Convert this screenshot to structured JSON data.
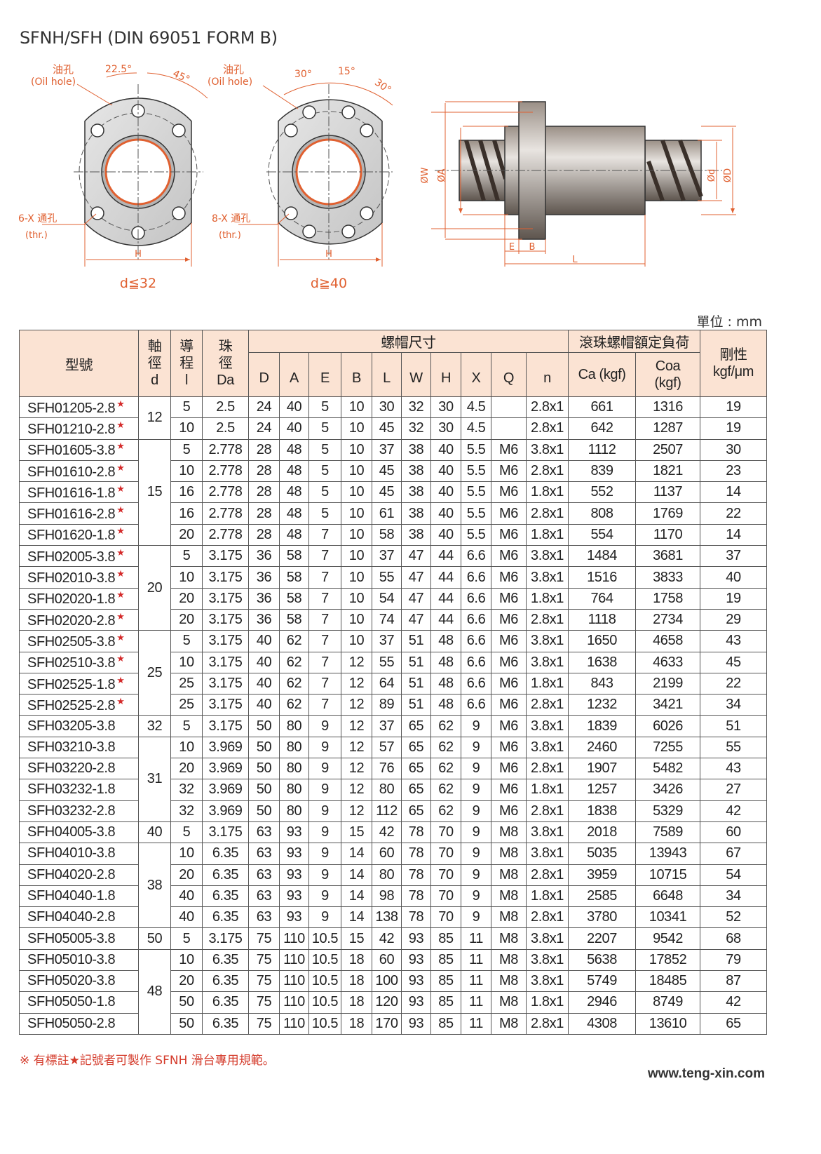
{
  "title": "SFNH/SFH (DIN 69051 FORM B)",
  "diagrams": [
    {
      "oil_hole": "油孔",
      "oil_hole_en": "(Oil hole)",
      "angles": [
        "22.5°",
        "45°"
      ],
      "holes": "6-X 通孔",
      "holes_en": "(thr.)",
      "width": "H",
      "caption": "d≦32"
    },
    {
      "oil_hole": "油孔",
      "oil_hole_en": "(Oil hole)",
      "angles": [
        "30°",
        "15°",
        "30°"
      ],
      "holes": "8-X 通孔",
      "holes_en": "(thr.)",
      "width": "H",
      "caption": "d≧40"
    },
    {
      "labels": [
        "ØW",
        "ØA",
        "E",
        "B",
        "L",
        "Ød",
        "ØD"
      ]
    }
  ],
  "unit": "單位 : mm",
  "table": {
    "headers": {
      "model": "型號",
      "shaft": [
        "軸",
        "徑",
        "d"
      ],
      "lead": [
        "導",
        "程",
        "l"
      ],
      "ball": [
        "珠",
        "徑",
        "Da"
      ],
      "nut": "螺帽尺寸",
      "nut_cols": [
        "D",
        "A",
        "E",
        "B",
        "L",
        "W",
        "H",
        "X",
        "Q",
        "n"
      ],
      "load": "滾珠螺帽額定負荷",
      "load_cols": [
        [
          "Ca (kgf)"
        ],
        [
          "Coa",
          "(kgf)"
        ]
      ],
      "stiffness": [
        "剛性",
        "kgf/μm"
      ]
    },
    "groups": [
      {
        "d": 12,
        "rows": [
          {
            "model": "SFH01205-2.8",
            "mark": "★",
            "cells": [
              5,
              2.5,
              24,
              40,
              5,
              10,
              30,
              32,
              30,
              4.5,
              null,
              "2.8x1",
              661,
              1316,
              19
            ]
          },
          {
            "model": "SFH01210-2.8",
            "mark": "★",
            "cells": [
              10,
              2.5,
              24,
              40,
              5,
              10,
              45,
              32,
              30,
              4.5,
              null,
              "2.8x1",
              642,
              1287,
              19
            ]
          }
        ]
      },
      {
        "d": 15,
        "rows": [
          {
            "model": "SFH01605-3.8",
            "mark": "★",
            "cells": [
              5,
              2.778,
              28,
              48,
              5,
              10,
              37,
              38,
              40,
              5.5,
              "M6",
              "3.8x1",
              1112,
              2507,
              30
            ]
          },
          {
            "model": "SFH01610-2.8",
            "mark": "★",
            "cells": [
              10,
              2.778,
              28,
              48,
              5,
              10,
              45,
              38,
              40,
              5.5,
              "M6",
              "2.8x1",
              839,
              1821,
              23
            ]
          },
          {
            "model": "SFH01616-1.8",
            "mark": "★",
            "cells": [
              16,
              2.778,
              28,
              48,
              5,
              10,
              45,
              38,
              40,
              5.5,
              "M6",
              "1.8x1",
              552,
              1137,
              14
            ]
          },
          {
            "model": "SFH01616-2.8",
            "mark": "★",
            "cells": [
              16,
              2.778,
              28,
              48,
              5,
              10,
              61,
              38,
              40,
              5.5,
              "M6",
              "2.8x1",
              808,
              1769,
              22
            ]
          },
          {
            "model": "SFH01620-1.8",
            "mark": "★",
            "cells": [
              20,
              2.778,
              28,
              48,
              7,
              10,
              58,
              38,
              40,
              5.5,
              "M6",
              "1.8x1",
              554,
              1170,
              14
            ]
          }
        ]
      },
      {
        "d": 20,
        "rows": [
          {
            "model": "SFH02005-3.8",
            "mark": "★",
            "cells": [
              5,
              3.175,
              36,
              58,
              7,
              10,
              37,
              47,
              44,
              6.6,
              "M6",
              "3.8x1",
              1484,
              3681,
              37
            ]
          },
          {
            "model": "SFH02010-3.8",
            "mark": "★",
            "cells": [
              10,
              3.175,
              36,
              58,
              7,
              10,
              55,
              47,
              44,
              6.6,
              "M6",
              "3.8x1",
              1516,
              3833,
              40
            ]
          },
          {
            "model": "SFH02020-1.8",
            "mark": "★",
            "cells": [
              20,
              3.175,
              36,
              58,
              7,
              10,
              54,
              47,
              44,
              6.6,
              "M6",
              "1.8x1",
              764,
              1758,
              19
            ]
          },
          {
            "model": "SFH02020-2.8",
            "mark": "★",
            "cells": [
              20,
              3.175,
              36,
              58,
              7,
              10,
              74,
              47,
              44,
              6.6,
              "M6",
              "2.8x1",
              1118,
              2734,
              29
            ]
          }
        ]
      },
      {
        "d": 25,
        "rows": [
          {
            "model": "SFH02505-3.8",
            "mark": "★",
            "cells": [
              5,
              3.175,
              40,
              62,
              7,
              10,
              37,
              51,
              48,
              6.6,
              "M6",
              "3.8x1",
              1650,
              4658,
              43
            ]
          },
          {
            "model": "SFH02510-3.8",
            "mark": "★",
            "cells": [
              10,
              3.175,
              40,
              62,
              7,
              12,
              55,
              51,
              48,
              6.6,
              "M6",
              "3.8x1",
              1638,
              4633,
              45
            ]
          },
          {
            "model": "SFH02525-1.8",
            "mark": "★",
            "cells": [
              25,
              3.175,
              40,
              62,
              7,
              12,
              64,
              51,
              48,
              6.6,
              "M6",
              "1.8x1",
              843,
              2199,
              22
            ]
          },
          {
            "model": "SFH02525-2.8",
            "mark": "★",
            "cells": [
              25,
              3.175,
              40,
              62,
              7,
              12,
              89,
              51,
              48,
              6.6,
              "M6",
              "2.8x1",
              1232,
              3421,
              34
            ]
          }
        ]
      },
      {
        "d": 32,
        "rows": [
          {
            "model": "SFH03205-3.8",
            "cells": [
              5,
              3.175,
              50,
              80,
              9,
              12,
              37,
              65,
              62,
              9,
              "M6",
              "3.8x1",
              1839,
              6026,
              51
            ]
          }
        ]
      },
      {
        "d": 31,
        "rows": [
          {
            "model": "SFH03210-3.8",
            "cells": [
              10,
              3.969,
              50,
              80,
              9,
              12,
              57,
              65,
              62,
              9,
              "M6",
              "3.8x1",
              2460,
              7255,
              55
            ]
          },
          {
            "model": "SFH03220-2.8",
            "cells": [
              20,
              3.969,
              50,
              80,
              9,
              12,
              76,
              65,
              62,
              9,
              "M6",
              "2.8x1",
              1907,
              5482,
              43
            ]
          },
          {
            "model": "SFH03232-1.8",
            "cells": [
              32,
              3.969,
              50,
              80,
              9,
              12,
              80,
              65,
              62,
              9,
              "M6",
              "1.8x1",
              1257,
              3426,
              27
            ]
          },
          {
            "model": "SFH03232-2.8",
            "cells": [
              32,
              3.969,
              50,
              80,
              9,
              12,
              112,
              65,
              62,
              9,
              "M6",
              "2.8x1",
              1838,
              5329,
              42
            ]
          }
        ]
      },
      {
        "d": 40,
        "rows": [
          {
            "model": "SFH04005-3.8",
            "cells": [
              5,
              3.175,
              63,
              93,
              9,
              15,
              42,
              78,
              70,
              9,
              "M8",
              "3.8x1",
              2018,
              7589,
              60
            ]
          }
        ]
      },
      {
        "d": 38,
        "rows": [
          {
            "model": "SFH04010-3.8",
            "cells": [
              10,
              6.35,
              63,
              93,
              9,
              14,
              60,
              78,
              70,
              9,
              "M8",
              "3.8x1",
              5035,
              13943,
              67
            ]
          },
          {
            "model": "SFH04020-2.8",
            "cells": [
              20,
              6.35,
              63,
              93,
              9,
              14,
              80,
              78,
              70,
              9,
              "M8",
              "2.8x1",
              3959,
              10715,
              54
            ]
          },
          {
            "model": "SFH04040-1.8",
            "cells": [
              40,
              6.35,
              63,
              93,
              9,
              14,
              98,
              78,
              70,
              9,
              "M8",
              "1.8x1",
              2585,
              6648,
              34
            ]
          },
          {
            "model": "SFH04040-2.8",
            "cells": [
              40,
              6.35,
              63,
              93,
              9,
              14,
              138,
              78,
              70,
              9,
              "M8",
              "2.8x1",
              3780,
              10341,
              52
            ]
          }
        ]
      },
      {
        "d": 50,
        "rows": [
          {
            "model": "SFH05005-3.8",
            "cells": [
              5,
              3.175,
              75,
              110,
              10.5,
              15,
              42,
              93,
              85,
              11,
              "M8",
              "3.8x1",
              2207,
              9542,
              68
            ]
          }
        ]
      },
      {
        "d": 48,
        "rows": [
          {
            "model": "SFH05010-3.8",
            "cells": [
              10,
              6.35,
              75,
              110,
              10.5,
              18,
              60,
              93,
              85,
              11,
              "M8",
              "3.8x1",
              5638,
              17852,
              79
            ]
          },
          {
            "model": "SFH05020-3.8",
            "cells": [
              20,
              6.35,
              75,
              110,
              10.5,
              18,
              100,
              93,
              85,
              11,
              "M8",
              "3.8x1",
              5749,
              18485,
              87
            ]
          },
          {
            "model": "SFH05050-1.8",
            "cells": [
              50,
              6.35,
              75,
              110,
              10.5,
              18,
              120,
              93,
              85,
              11,
              "M8",
              "1.8x1",
              2946,
              8749,
              42
            ]
          },
          {
            "model": "SFH05050-2.8",
            "cells": [
              50,
              6.35,
              75,
              110,
              10.5,
              18,
              170,
              93,
              85,
              11,
              "M8",
              "2.8x1",
              4308,
              13610,
              65
            ]
          }
        ]
      }
    ]
  },
  "footnote": "※ 有標註★記號者可製作 SFNH 滑台專用規範。",
  "website": "www.teng-xin.com"
}
